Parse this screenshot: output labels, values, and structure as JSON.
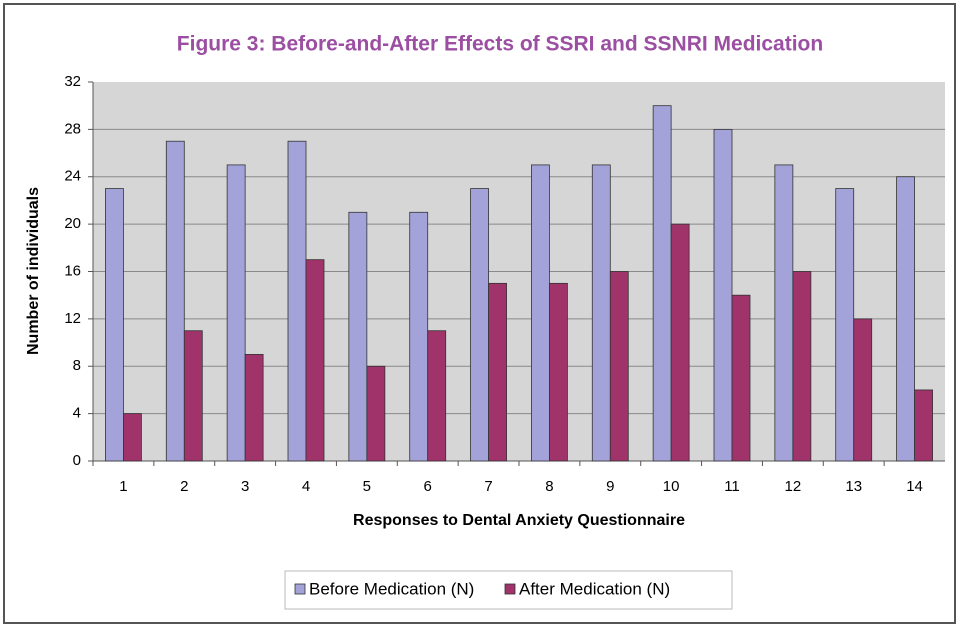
{
  "chart_data": {
    "type": "bar",
    "title": "Figure 3: Before-and-After Effects of SSRI and SSNRI Medication",
    "x_label": "Responses to Dental Anxiety Questionnaire",
    "y_label": "Number of individuals",
    "categories": [
      "1",
      "2",
      "3",
      "4",
      "5",
      "6",
      "7",
      "8",
      "9",
      "10",
      "11",
      "12",
      "13",
      "14"
    ],
    "series": [
      {
        "name": "Before Medication (N)",
        "color": "#a3a3d9",
        "values": [
          23,
          27,
          25,
          27,
          21,
          21,
          23,
          25,
          25,
          30,
          28,
          25,
          23,
          24
        ]
      },
      {
        "name": "After Medication (N)",
        "color": "#a0336a",
        "values": [
          4,
          11,
          9,
          17,
          8,
          11,
          15,
          15,
          16,
          20,
          14,
          16,
          12,
          6
        ]
      }
    ],
    "ylim": [
      0,
      32
    ],
    "yticks": [
      0,
      4,
      8,
      12,
      16,
      20,
      24,
      28,
      32
    ],
    "grid": true,
    "legend": "bottom"
  }
}
